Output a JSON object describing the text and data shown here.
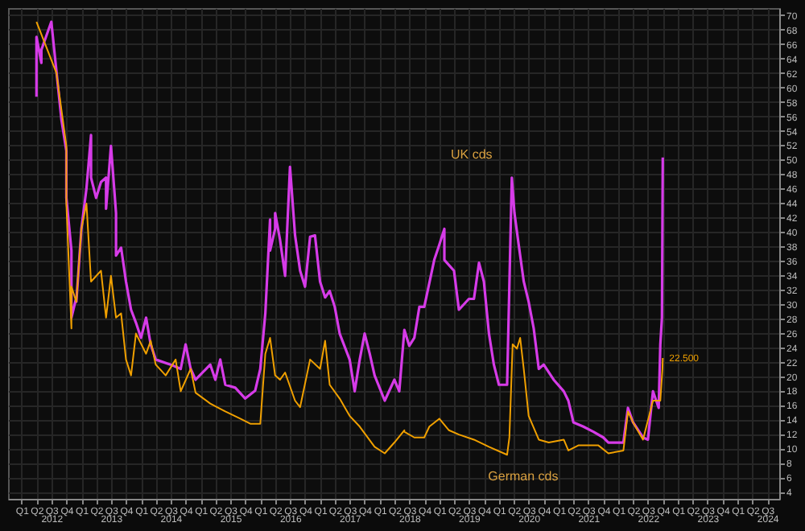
{
  "chart_data": {
    "type": "line",
    "xlim": [
      "2011-10-10",
      "2024-09-12"
    ],
    "ylim": [
      3,
      71
    ],
    "xticks": [
      {
        "value": "2012-01-01",
        "label": "Q1"
      },
      {
        "value": "2012-04-01",
        "label": "Q2"
      },
      {
        "value": "2012-07-01",
        "label": "Q3"
      },
      {
        "value": "2012-10-01",
        "label": "Q4"
      },
      {
        "value": "2013-01-01",
        "label": "Q1"
      },
      {
        "value": "2013-04-01",
        "label": "Q2"
      },
      {
        "value": "2013-07-01",
        "label": "Q3"
      },
      {
        "value": "2013-10-01",
        "label": "Q4"
      },
      {
        "value": "2014-01-01",
        "label": "Q1"
      },
      {
        "value": "2014-04-01",
        "label": "Q2"
      },
      {
        "value": "2014-07-01",
        "label": "Q3"
      },
      {
        "value": "2014-10-01",
        "label": "Q4"
      },
      {
        "value": "2015-01-01",
        "label": "Q1"
      },
      {
        "value": "2015-04-01",
        "label": "Q2"
      },
      {
        "value": "2015-07-01",
        "label": "Q3"
      },
      {
        "value": "2015-10-01",
        "label": "Q4"
      },
      {
        "value": "2016-01-01",
        "label": "Q1"
      },
      {
        "value": "2016-04-01",
        "label": "Q2"
      },
      {
        "value": "2016-07-01",
        "label": "Q3"
      },
      {
        "value": "2016-10-01",
        "label": "Q4"
      },
      {
        "value": "2017-01-01",
        "label": "Q1"
      },
      {
        "value": "2017-04-01",
        "label": "Q2"
      },
      {
        "value": "2017-07-01",
        "label": "Q3"
      },
      {
        "value": "2017-10-01",
        "label": "Q4"
      },
      {
        "value": "2018-01-01",
        "label": "Q1"
      },
      {
        "value": "2018-04-01",
        "label": "Q2"
      },
      {
        "value": "2018-07-01",
        "label": "Q3"
      },
      {
        "value": "2018-10-01",
        "label": "Q4"
      },
      {
        "value": "2019-01-01",
        "label": "Q1"
      },
      {
        "value": "2019-04-01",
        "label": "Q2"
      },
      {
        "value": "2019-07-01",
        "label": "Q3"
      },
      {
        "value": "2019-10-01",
        "label": "Q4"
      },
      {
        "value": "2020-01-01",
        "label": "Q1"
      },
      {
        "value": "2020-04-01",
        "label": "Q2"
      },
      {
        "value": "2020-07-01",
        "label": "Q3"
      },
      {
        "value": "2020-10-01",
        "label": "Q4"
      },
      {
        "value": "2021-01-01",
        "label": "Q1"
      },
      {
        "value": "2021-04-01",
        "label": "Q2"
      },
      {
        "value": "2021-07-01",
        "label": "Q3"
      },
      {
        "value": "2021-10-01",
        "label": "Q4"
      },
      {
        "value": "2022-01-01",
        "label": "Q1"
      },
      {
        "value": "2022-04-01",
        "label": "Q2"
      },
      {
        "value": "2022-07-01",
        "label": "Q3"
      },
      {
        "value": "2022-10-01",
        "label": "Q4"
      },
      {
        "value": "2023-01-01",
        "label": "Q1"
      },
      {
        "value": "2023-04-01",
        "label": "Q2"
      },
      {
        "value": "2023-07-01",
        "label": "Q3"
      },
      {
        "value": "2023-10-01",
        "label": "Q4"
      },
      {
        "value": "2024-01-01",
        "label": "Q1"
      },
      {
        "value": "2024-04-01",
        "label": "Q2"
      },
      {
        "value": "2024-07-01",
        "label": "Q3"
      }
    ],
    "x2lim": [
      "2011-10-10",
      "2024-09-12"
    ],
    "x2ticks": [
      {
        "value": "2012-07-01",
        "label": "2012"
      },
      {
        "value": "2013-07-01",
        "label": "2013"
      },
      {
        "value": "2014-07-01",
        "label": "2014"
      },
      {
        "value": "2015-07-01",
        "label": "2015"
      },
      {
        "value": "2016-07-01",
        "label": "2016"
      },
      {
        "value": "2017-07-01",
        "label": "2017"
      },
      {
        "value": "2018-07-01",
        "label": "2018"
      },
      {
        "value": "2019-07-01",
        "label": "2019"
      },
      {
        "value": "2020-07-01",
        "label": "2020"
      },
      {
        "value": "2021-07-01",
        "label": "2021"
      },
      {
        "value": "2022-07-01",
        "label": "2022"
      },
      {
        "value": "2023-07-01",
        "label": "2023"
      },
      {
        "value": "2024-07-01",
        "label": "2024"
      }
    ],
    "yticks": [
      4,
      6,
      8,
      10,
      12,
      14,
      16,
      18,
      20,
      22,
      24,
      26,
      28,
      30,
      32,
      34,
      36,
      38,
      40,
      42,
      44,
      46,
      48,
      50,
      52,
      54,
      56,
      58,
      60,
      62,
      64,
      66,
      68,
      70
    ],
    "grid": true,
    "marker": "none",
    "line_style": "solid",
    "series": [
      {
        "name": "UK cds",
        "color": "#d63be8",
        "x": [
          "2012-04",
          "2012-04",
          "2012-05",
          "2012-05",
          "2012-07",
          "2012-09",
          "2012-10",
          "2012-10",
          "2012-11",
          "2012-11",
          "2012-12",
          "2012-12",
          "2013-01",
          "2013-02",
          "2013-03",
          "2013-03",
          "2013-04",
          "2013-05",
          "2013-06",
          "2013-06",
          "2013-07",
          "2013-08",
          "2013-08",
          "2013-09",
          "2013-10",
          "2013-11",
          "2013-12",
          "2014-01",
          "2014-02",
          "2014-03",
          "2014-04",
          "2014-07",
          "2014-09",
          "2014-10",
          "2014-11",
          "2014-12",
          "2015-03",
          "2015-04",
          "2015-05",
          "2015-06",
          "2015-08",
          "2015-10",
          "2015-12",
          "2016-01",
          "2016-02",
          "2016-03",
          "2016-03",
          "2016-04",
          "2016-04",
          "2016-05",
          "2016-06",
          "2016-07",
          "2016-08",
          "2016-09",
          "2016-10",
          "2016-11",
          "2016-12",
          "2017-01",
          "2017-02",
          "2017-03",
          "2017-04",
          "2017-05",
          "2017-07",
          "2017-08",
          "2017-09",
          "2017-10",
          "2017-11",
          "2017-12",
          "2018-02",
          "2018-04",
          "2018-05",
          "2018-06",
          "2018-07",
          "2018-08",
          "2018-09",
          "2018-10",
          "2018-12",
          "2019-01",
          "2019-02",
          "2019-02",
          "2019-04",
          "2019-05",
          "2019-07",
          "2019-08",
          "2019-09",
          "2019-10",
          "2019-11",
          "2019-12",
          "2020-01",
          "2020-02-20",
          "2020-03-20",
          "2020-04-05",
          "2020-05",
          "2020-06",
          "2020-07",
          "2020-08",
          "2020-09",
          "2020-10",
          "2020-12",
          "2021-02",
          "2021-03",
          "2021-04",
          "2021-06",
          "2021-08",
          "2021-10",
          "2021-11",
          "2022-02",
          "2022-03",
          "2022-04",
          "2022-06",
          "2022-07",
          "2022-08",
          "2022-09-05",
          "2022-09-15",
          "2022-09-25",
          "2022-09-28",
          "2022-09-30"
        ],
        "values": [
          58.7,
          67.0,
          63.4,
          65.2,
          69.1,
          55.5,
          51.2,
          44.7,
          37.4,
          28.1,
          30.9,
          30.3,
          40.4,
          46.0,
          53.4,
          47.5,
          44.7,
          46.9,
          47.5,
          43.2,
          51.9,
          42.6,
          36.7,
          37.8,
          33.1,
          29.2,
          27.4,
          25.3,
          28.1,
          24.4,
          22.3,
          21.6,
          21.0,
          24.4,
          21.0,
          19.5,
          21.6,
          19.5,
          22.3,
          18.8,
          18.4,
          16.9,
          18.0,
          21.0,
          28.7,
          41.7,
          37.4,
          40.4,
          42.6,
          38.9,
          33.9,
          49.0,
          39.5,
          34.6,
          32.4,
          39.3,
          39.5,
          33.1,
          30.9,
          31.8,
          29.6,
          25.9,
          22.3,
          17.9,
          22.3,
          25.9,
          23.1,
          20.1,
          16.6,
          19.5,
          17.9,
          26.4,
          24.2,
          25.3,
          29.6,
          29.6,
          36.1,
          38.2,
          40.4,
          36.1,
          34.6,
          29.2,
          30.7,
          30.7,
          35.7,
          33.1,
          25.9,
          21.6,
          18.8,
          18.8,
          47.5,
          42.6,
          38.2,
          33.1,
          30.3,
          26.6,
          21.0,
          21.6,
          19.5,
          17.9,
          16.6,
          13.6,
          13.0,
          12.3,
          11.5,
          10.8,
          10.8,
          15.6,
          13.6,
          11.5,
          11.2,
          17.9,
          15.6,
          24.4,
          28.1,
          41.1,
          50.3
        ]
      },
      {
        "name": "German cds",
        "color": "#f0a000",
        "x": [
          "2012-04",
          "2012-08",
          "2012-10",
          "2012-10",
          "2012-11",
          "2012-11",
          "2012-12",
          "2013-01",
          "2013-02",
          "2013-03",
          "2013-05",
          "2013-06",
          "2013-07",
          "2013-08",
          "2013-09",
          "2013-10",
          "2013-11",
          "2013-12",
          "2014-02",
          "2014-03",
          "2014-04",
          "2014-06",
          "2014-08",
          "2014-09",
          "2014-11",
          "2014-12",
          "2015-03",
          "2015-06",
          "2015-09",
          "2015-11",
          "2016-01",
          "2016-02",
          "2016-03",
          "2016-04",
          "2016-05",
          "2016-06",
          "2016-08",
          "2016-09",
          "2016-11",
          "2017-01",
          "2017-02",
          "2017-03",
          "2017-05",
          "2017-07",
          "2017-09",
          "2017-12",
          "2018-02",
          "2018-04",
          "2018-06",
          "2018-06",
          "2018-08",
          "2018-10",
          "2018-11",
          "2019-01",
          "2019-03",
          "2019-05",
          "2019-08",
          "2019-11",
          "2020-02-20",
          "2020-03-05",
          "2020-03-25",
          "2020-04-20",
          "2020-05-10",
          "2020-06",
          "2020-07",
          "2020-09",
          "2020-11",
          "2021-02",
          "2021-03",
          "2021-05",
          "2021-09",
          "2021-11",
          "2022-02",
          "2022-03",
          "2022-04",
          "2022-06",
          "2022-08",
          "2022-09-15",
          "2022-09-28",
          "2022-09-30"
        ],
        "values": [
          69.1,
          62.0,
          51.9,
          43.9,
          26.6,
          32.4,
          30.3,
          40.4,
          43.9,
          33.1,
          34.6,
          28.1,
          33.9,
          28.1,
          28.7,
          22.3,
          20.1,
          25.9,
          23.1,
          24.9,
          21.6,
          20.1,
          22.3,
          17.9,
          21.0,
          17.7,
          16.2,
          15.1,
          14.1,
          13.4,
          13.4,
          23.1,
          25.3,
          20.1,
          19.5,
          20.5,
          16.6,
          15.7,
          22.3,
          21.0,
          24.9,
          18.8,
          16.9,
          14.5,
          13.0,
          10.2,
          9.3,
          10.8,
          12.5,
          12.3,
          11.5,
          11.5,
          13.0,
          14.1,
          12.5,
          11.9,
          11.2,
          10.2,
          9.1,
          11.5,
          24.4,
          23.8,
          25.3,
          21.0,
          14.5,
          11.2,
          10.8,
          11.2,
          9.7,
          10.4,
          10.4,
          9.3,
          9.7,
          15.1,
          13.6,
          11.2,
          16.6,
          16.6,
          21.0,
          22.5
        ]
      }
    ],
    "annotations": [
      {
        "text": "22.500",
        "x": "2022-09-30",
        "y": 22.5
      }
    ]
  }
}
